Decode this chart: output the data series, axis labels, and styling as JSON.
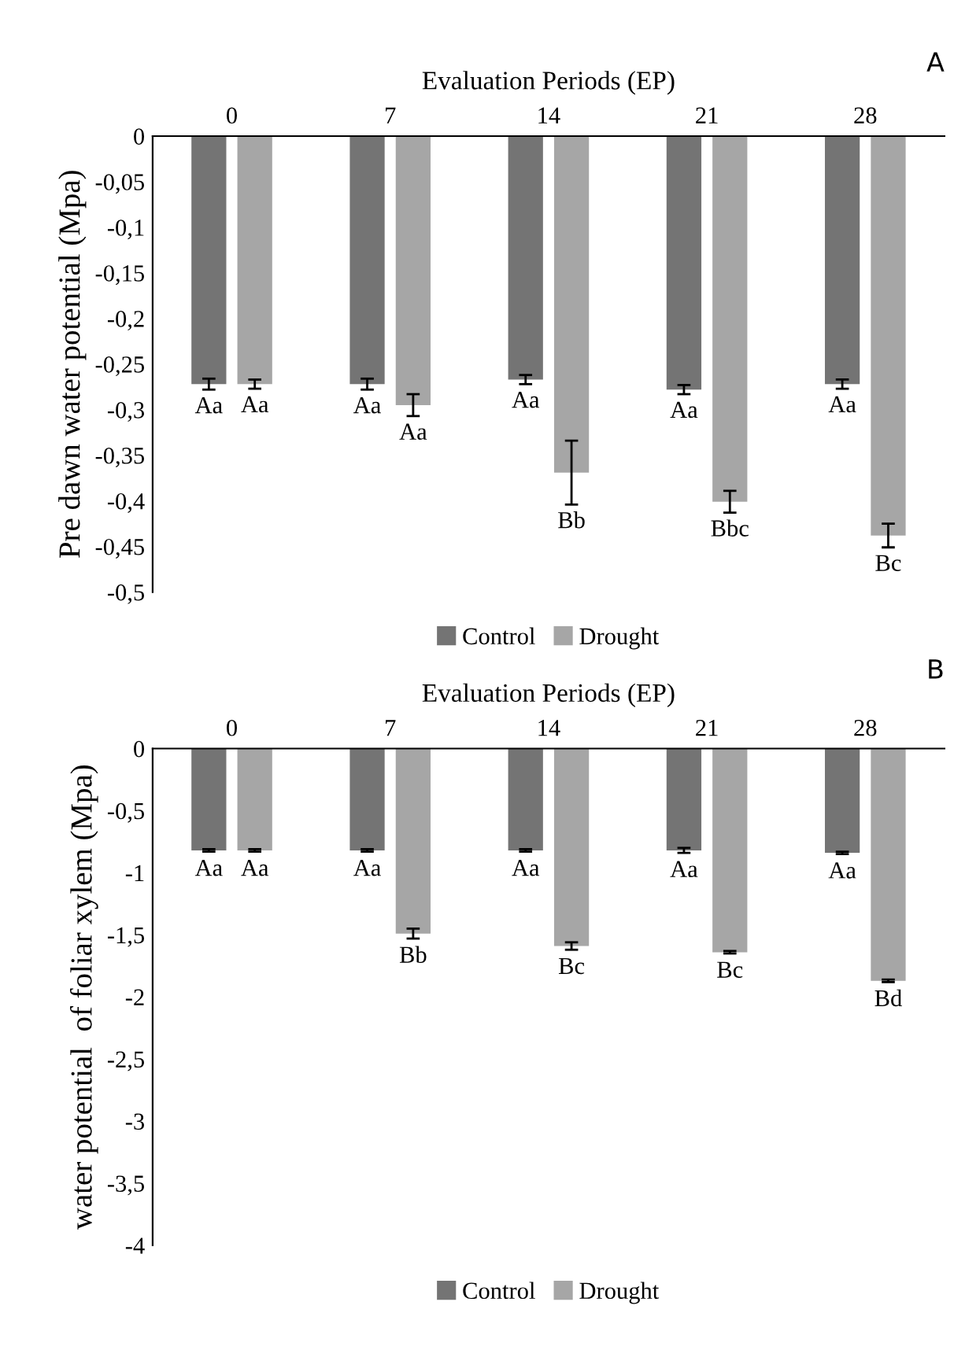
{
  "chart_data": [
    {
      "type": "bar",
      "xlabel": "Evaluation Periods (EP)",
      "ylabel": "Pre dawn water potential (Mpa)",
      "annotations": [
        "A"
      ],
      "categories": [
        "0",
        "7",
        "14",
        "21",
        "28"
      ],
      "series": [
        {
          "name": "Control",
          "color": "#747474",
          "values": [
            -0.272,
            -0.272,
            -0.267,
            -0.278,
            -0.272
          ],
          "errors": [
            0.006,
            0.006,
            0.005,
            0.005,
            0.005
          ],
          "value_labels": [
            "Aa",
            "Aa",
            "Aa",
            "Aa",
            "Aa"
          ]
        },
        {
          "name": "Drought",
          "color": "#a6a6a6",
          "values": [
            -0.272,
            -0.295,
            -0.369,
            -0.401,
            -0.438
          ],
          "errors": [
            0.005,
            0.012,
            0.035,
            0.012,
            0.013
          ],
          "value_labels": [
            "Aa",
            "Aa",
            "Bb",
            "Bbc",
            "Bc"
          ]
        }
      ],
      "ylim": [
        -0.5,
        0
      ],
      "yticks": [
        {
          "value": -0.5,
          "label": "-0,5"
        },
        {
          "value": -0.45,
          "label": "-0,45"
        },
        {
          "value": -0.4,
          "label": "-0,4"
        },
        {
          "value": -0.35,
          "label": "-0,35"
        },
        {
          "value": -0.3,
          "label": "-0,3"
        },
        {
          "value": -0.25,
          "label": "-0,25"
        },
        {
          "value": -0.2,
          "label": "-0,2"
        },
        {
          "value": -0.15,
          "label": "-0,15"
        },
        {
          "value": -0.1,
          "label": "-0,1"
        },
        {
          "value": -0.05,
          "label": "-0,05"
        },
        0
      ],
      "grid": false,
      "legend": "bottom"
    },
    {
      "type": "bar",
      "xlabel": "Evaluation Periods (EP)",
      "ylabel": "water potential  of foliar xylem (Mpa)",
      "annotations": [
        "B"
      ],
      "categories": [
        "0",
        "7",
        "14",
        "21",
        "28"
      ],
      "series": [
        {
          "name": "Control",
          "color": "#747474",
          "values": [
            -0.82,
            -0.82,
            -0.82,
            -0.82,
            -0.84
          ],
          "errors": [
            0.01,
            0.01,
            0.01,
            0.02,
            0.01
          ],
          "value_labels": [
            "Aa",
            "Aa",
            "Aa",
            "Aa",
            "Aa"
          ]
        },
        {
          "name": "Drought",
          "color": "#a6a6a6",
          "values": [
            -0.82,
            -1.49,
            -1.59,
            -1.64,
            -1.87
          ],
          "errors": [
            0.01,
            0.04,
            0.03,
            0.01,
            0.01
          ],
          "value_labels": [
            "Aa",
            "Bb",
            "Bc",
            "Bc",
            "Bd"
          ]
        }
      ],
      "ylim": [
        -4,
        0
      ],
      "yticks": [
        {
          "value": -4,
          "label": "-4"
        },
        {
          "value": -3.5,
          "label": "-3,5"
        },
        {
          "value": -3,
          "label": "-3"
        },
        {
          "value": -2.5,
          "label": "-2,5"
        },
        {
          "value": -2,
          "label": "-2"
        },
        {
          "value": -1.5,
          "label": "-1,5"
        },
        {
          "value": -1,
          "label": "-1"
        },
        {
          "value": -0.5,
          "label": "-0,5"
        },
        0
      ],
      "grid": false,
      "legend": "bottom"
    }
  ]
}
